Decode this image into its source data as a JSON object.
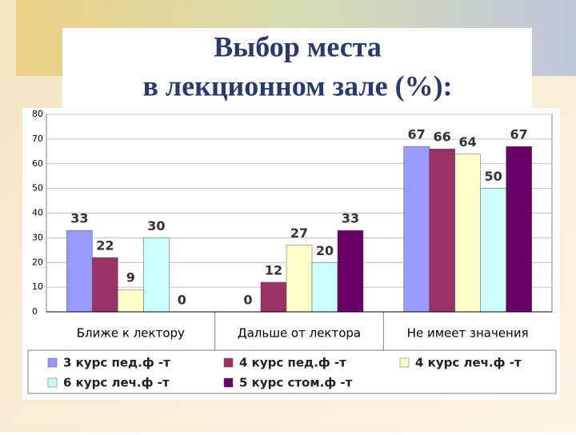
{
  "chart_data": {
    "type": "bar",
    "title_lines": [
      "Выбор места",
      "в лекционном зале (%):"
    ],
    "categories": [
      "Ближе к лектору",
      "Дальше от лектора",
      "Не имеет значения"
    ],
    "series": [
      {
        "name": "3 курс пед.ф -т",
        "color": "#9999ff",
        "values": [
          33,
          0,
          67
        ]
      },
      {
        "name": "4 курс пед.ф -т",
        "color": "#993366",
        "values": [
          22,
          12,
          66
        ]
      },
      {
        "name": "4 курс леч.ф -т",
        "color": "#ffffcc",
        "values": [
          9,
          27,
          64
        ]
      },
      {
        "name": "6 курс леч.ф -т",
        "color": "#ccffff",
        "values": [
          30,
          20,
          50
        ]
      },
      {
        "name": "5 курс стом.ф -т",
        "color": "#660066",
        "values": [
          0,
          33,
          67
        ]
      }
    ],
    "ylim": [
      0,
      80
    ],
    "yticks": [
      0,
      10,
      20,
      30,
      40,
      50,
      60,
      70,
      80
    ],
    "grid": true,
    "legend": "bottom"
  }
}
